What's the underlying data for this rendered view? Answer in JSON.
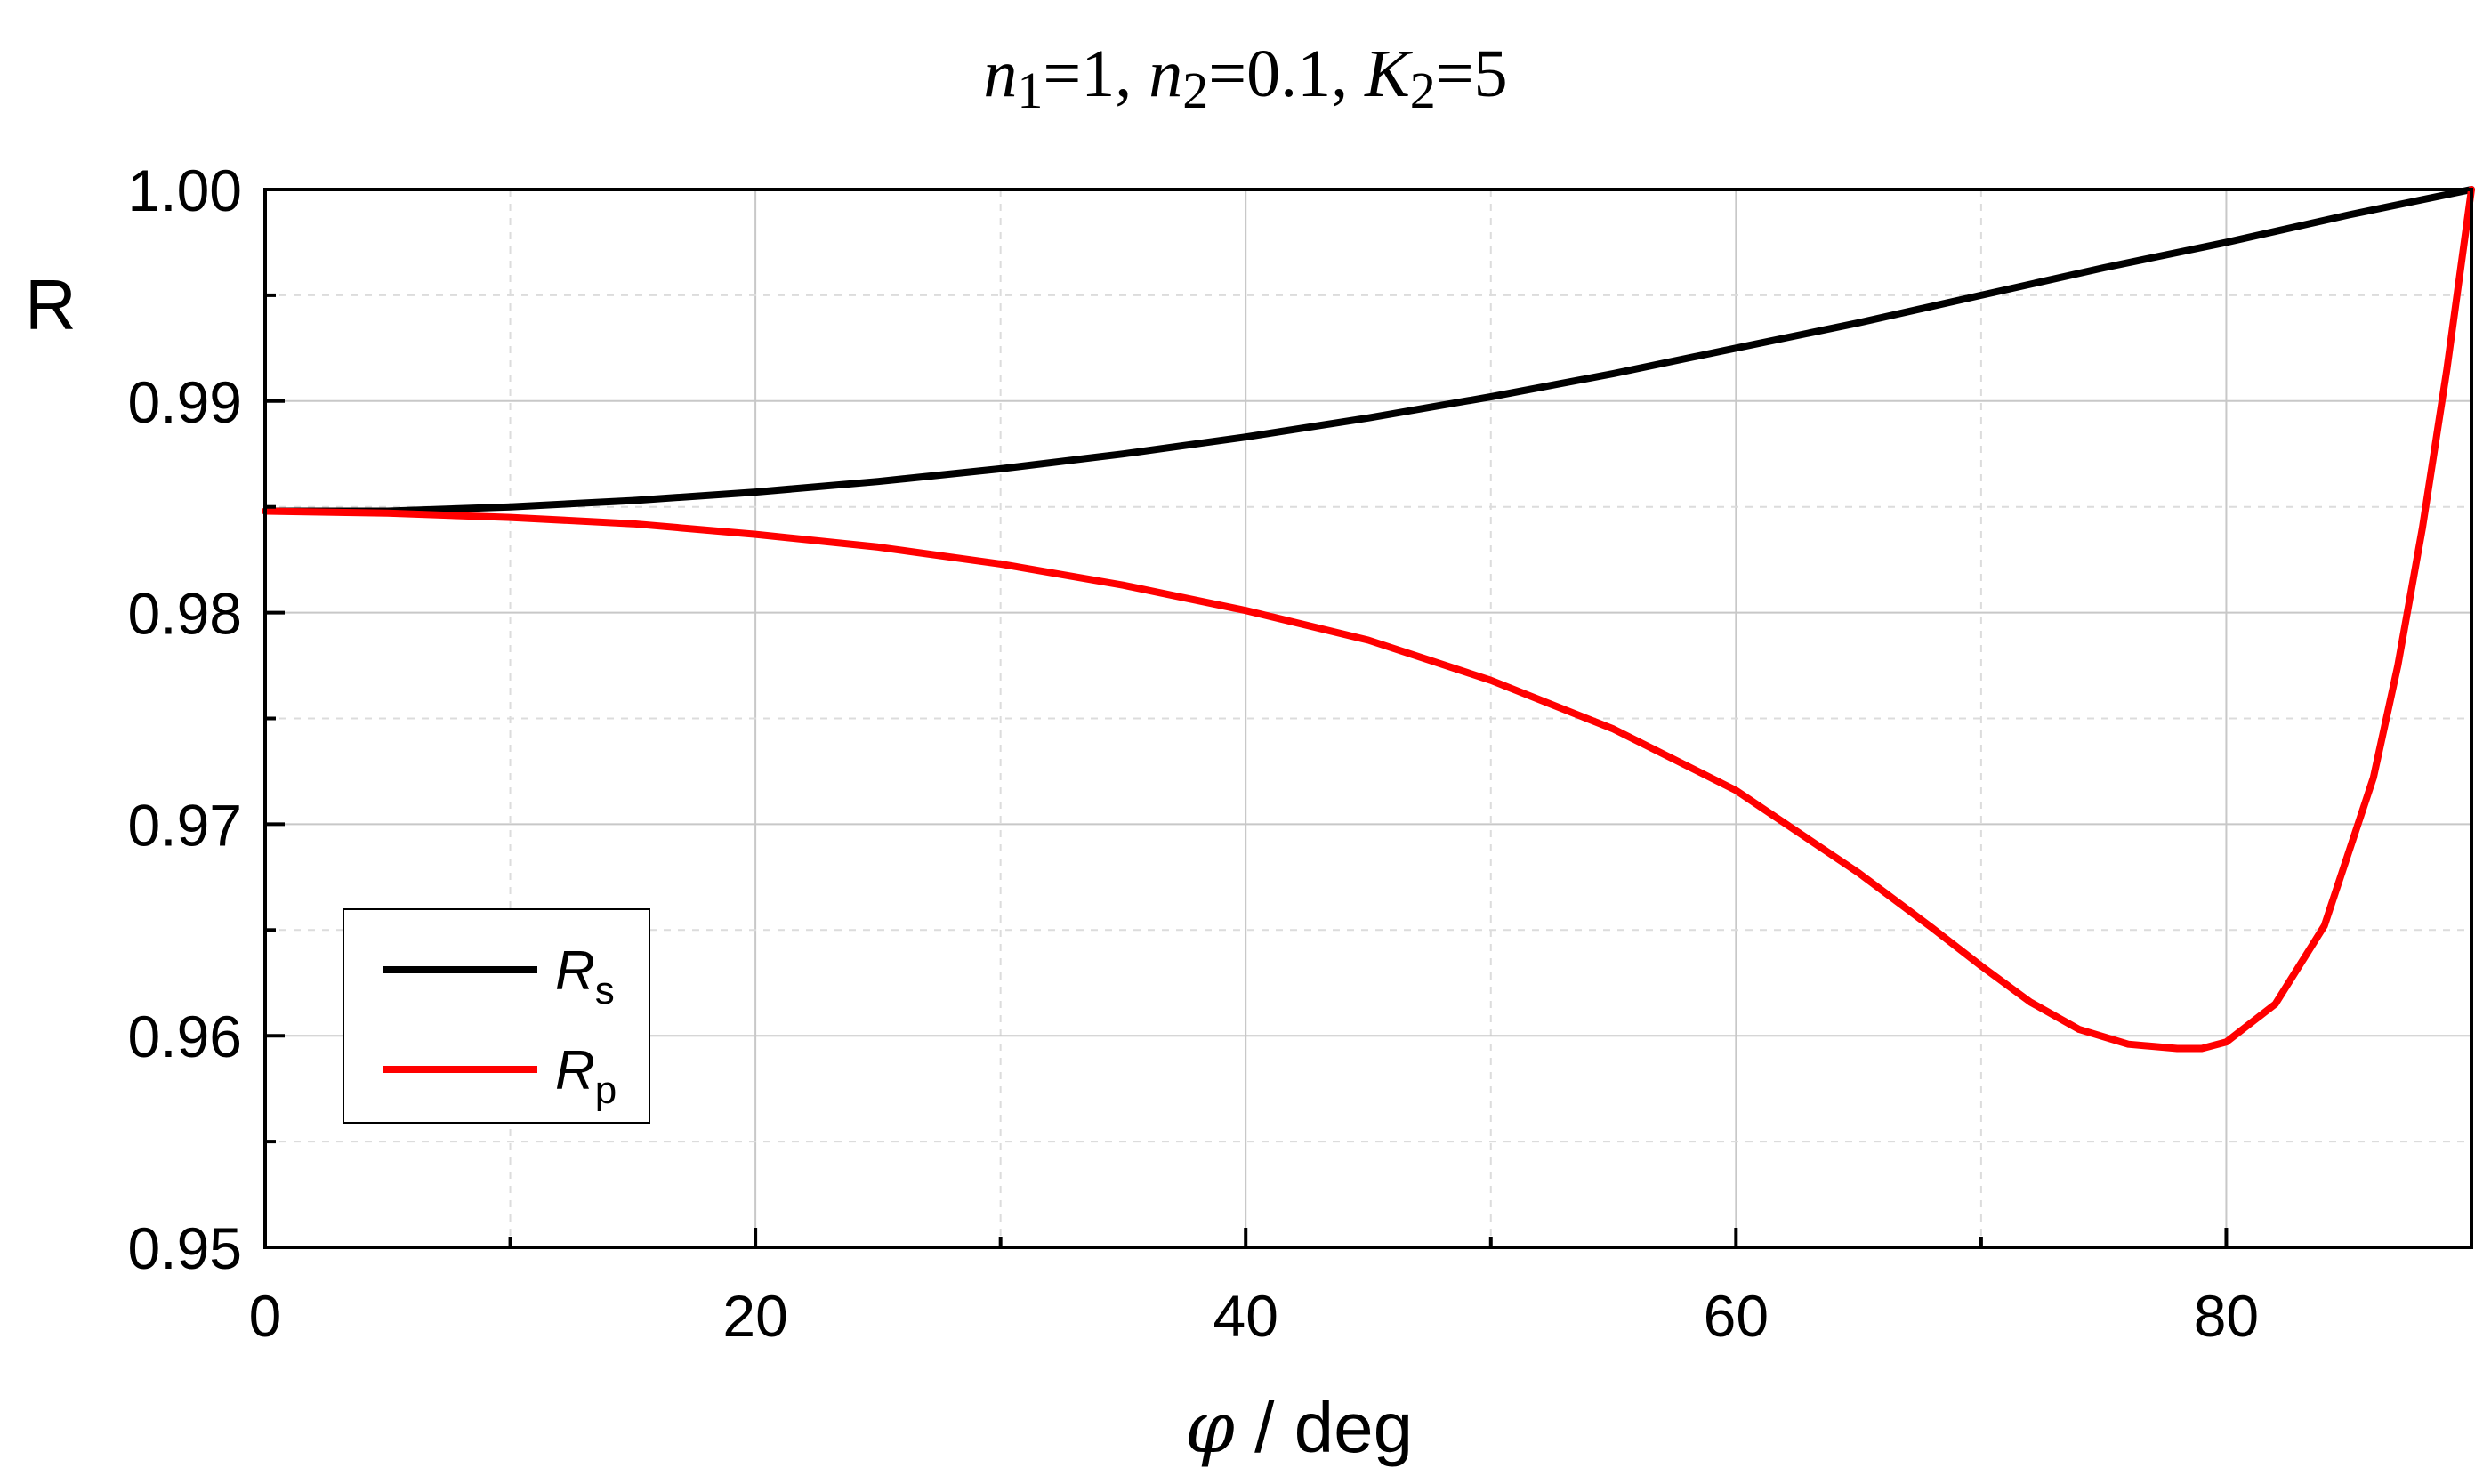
{
  "chart_data": {
    "type": "line",
    "title_parts": [
      {
        "text": "n",
        "italic": true
      },
      {
        "text": "1",
        "sub": true
      },
      {
        "text": "=1, ",
        "italic": false
      },
      {
        "text": "n",
        "italic": true
      },
      {
        "text": "2",
        "sub": true
      },
      {
        "text": "=0.1, ",
        "italic": false
      },
      {
        "text": "K",
        "italic": true
      },
      {
        "text": "2",
        "sub": true
      },
      {
        "text": "=5",
        "italic": false
      }
    ],
    "xlabel": {
      "symbol": "φ",
      "rest": " / deg"
    },
    "ylabel": "R",
    "xlim": [
      0,
      90
    ],
    "ylim": [
      0.95,
      1.0
    ],
    "x_ticks": [
      0,
      20,
      40,
      60,
      80
    ],
    "x_tick_labels": [
      "0",
      "20",
      "40",
      "60",
      "80"
    ],
    "x_minor_ticks": [
      10,
      30,
      50,
      70,
      90
    ],
    "y_ticks": [
      0.95,
      0.96,
      0.97,
      0.98,
      0.99,
      1.0
    ],
    "y_tick_labels": [
      "0.95",
      "0.96",
      "0.97",
      "0.98",
      "0.99",
      "1.00"
    ],
    "y_minor_ticks": [
      0.955,
      0.965,
      0.975,
      0.985,
      0.995
    ],
    "grid": true,
    "legend_position": "bottom-left",
    "series": [
      {
        "name": "R",
        "name_sub": "s",
        "color": "#000000",
        "x": [
          0,
          5,
          10,
          15,
          20,
          25,
          30,
          35,
          40,
          45,
          50,
          55,
          60,
          65,
          70,
          75,
          80,
          85,
          90
        ],
        "y": [
          0.9848,
          0.9848,
          0.985,
          0.9853,
          0.9857,
          0.9862,
          0.9868,
          0.9875,
          0.9883,
          0.9892,
          0.9902,
          0.9913,
          0.9925,
          0.9937,
          0.995,
          0.9963,
          0.9975,
          0.9988,
          1.0
        ]
      },
      {
        "name": "R",
        "name_sub": "p",
        "color": "#ff0000",
        "x": [
          0,
          5,
          10,
          15,
          20,
          25,
          30,
          35,
          40,
          45,
          50,
          55,
          60,
          65,
          68,
          70,
          72,
          74,
          76,
          78,
          79,
          80,
          82,
          84,
          86,
          87,
          88,
          89,
          90
        ],
        "y": [
          0.9848,
          0.9847,
          0.9845,
          0.9842,
          0.9837,
          0.9831,
          0.9823,
          0.9813,
          0.9801,
          0.9787,
          0.9768,
          0.9745,
          0.9716,
          0.9677,
          0.9651,
          0.9633,
          0.9616,
          0.9603,
          0.9596,
          0.9594,
          0.9594,
          0.9597,
          0.9615,
          0.9652,
          0.9722,
          0.9775,
          0.984,
          0.9915,
          1.0
        ]
      }
    ]
  }
}
